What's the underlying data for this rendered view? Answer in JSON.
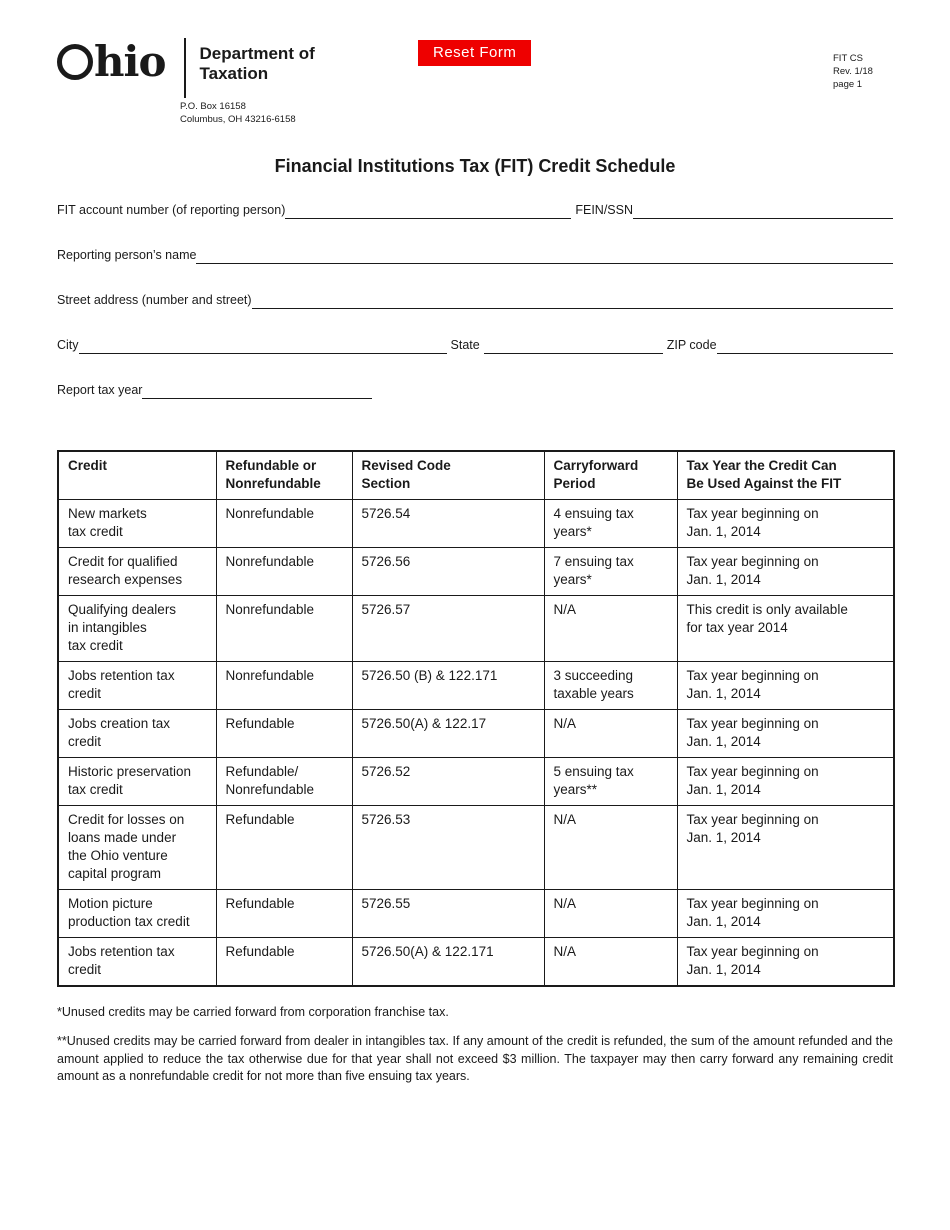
{
  "header": {
    "logo_hio": "hio",
    "dept_line1": "Department of",
    "dept_line2": "Taxation",
    "po_box": "P.O. Box 16158",
    "po_city": "Columbus, OH 43216-6158",
    "reset_button_label": "Reset Form",
    "form_code": "FIT CS",
    "revision": "Rev. 1/18",
    "page_label": "page 1"
  },
  "colors": {
    "reset_button_bg": "#ee0000",
    "reset_button_text": "#ffffff",
    "ink": "#1a1a1a"
  },
  "title": "Financial Institutions Tax (FIT) Credit Schedule",
  "fields": {
    "fit_account_label": "FIT account number (of reporting person)",
    "fein_ssn_label": "FEIN/SSN",
    "reporting_name_label": "Reporting person’s name",
    "street_address_label": "Street address (number and street)",
    "city_label": "City",
    "state_label": "State",
    "zip_label": "ZIP code",
    "report_tax_year_label": "Report tax year"
  },
  "table": {
    "headers": [
      "Credit",
      "Refundable or\nNonrefundable",
      "Revised Code\nSection",
      "Carryforward\nPeriod",
      "Tax Year the Credit Can\nBe Used Against the FIT"
    ],
    "rows": [
      [
        "New markets\ntax credit",
        "Nonrefundable",
        "5726.54",
        "4 ensuing tax\nyears*",
        "Tax year beginning on\nJan. 1, 2014"
      ],
      [
        "Credit for qualified\nresearch expenses",
        "Nonrefundable",
        "5726.56",
        "7 ensuing tax\nyears*",
        "Tax year beginning on\nJan. 1, 2014"
      ],
      [
        "Qualifying dealers\nin intangibles\ntax credit",
        "Nonrefundable",
        "5726.57",
        "N/A",
        "This credit is only available\nfor tax year 2014"
      ],
      [
        "Jobs retention tax\ncredit",
        "Nonrefundable",
        "5726.50 (B) & 122.171",
        "3 succeeding\ntaxable years",
        "Tax year beginning on\nJan. 1, 2014"
      ],
      [
        "Jobs creation tax\ncredit",
        "Refundable",
        "5726.50(A) & 122.17",
        "N/A",
        "Tax year beginning on\nJan. 1, 2014"
      ],
      [
        "Historic preservation\ntax credit",
        "Refundable/\nNonrefundable",
        "5726.52",
        "5 ensuing tax\nyears**",
        "Tax year beginning on\nJan. 1, 2014"
      ],
      [
        "Credit for losses on\nloans made under\nthe Ohio venture\ncapital program",
        "Refundable",
        "5726.53",
        "N/A",
        "Tax year beginning on\nJan. 1, 2014"
      ],
      [
        "Motion picture\nproduction tax credit",
        "Refundable",
        "5726.55",
        "N/A",
        "Tax year beginning on\nJan. 1, 2014"
      ],
      [
        "Jobs retention tax\ncredit",
        "Refundable",
        "5726.50(A) & 122.171",
        "N/A",
        "Tax year beginning on\nJan. 1, 2014"
      ]
    ]
  },
  "footnotes": {
    "note1": "*Unused credits may be carried forward from corporation franchise tax.",
    "note2": "**Unused credits may be carried forward from dealer in intangibles tax. If any amount of the credit is refunded, the sum of the amount refunded and the amount applied to reduce the tax otherwise due for that year shall not exceed $3 million. The taxpayer may then carry forward any remaining credit amount as a nonrefundable credit for not more than five ensuing tax years."
  }
}
